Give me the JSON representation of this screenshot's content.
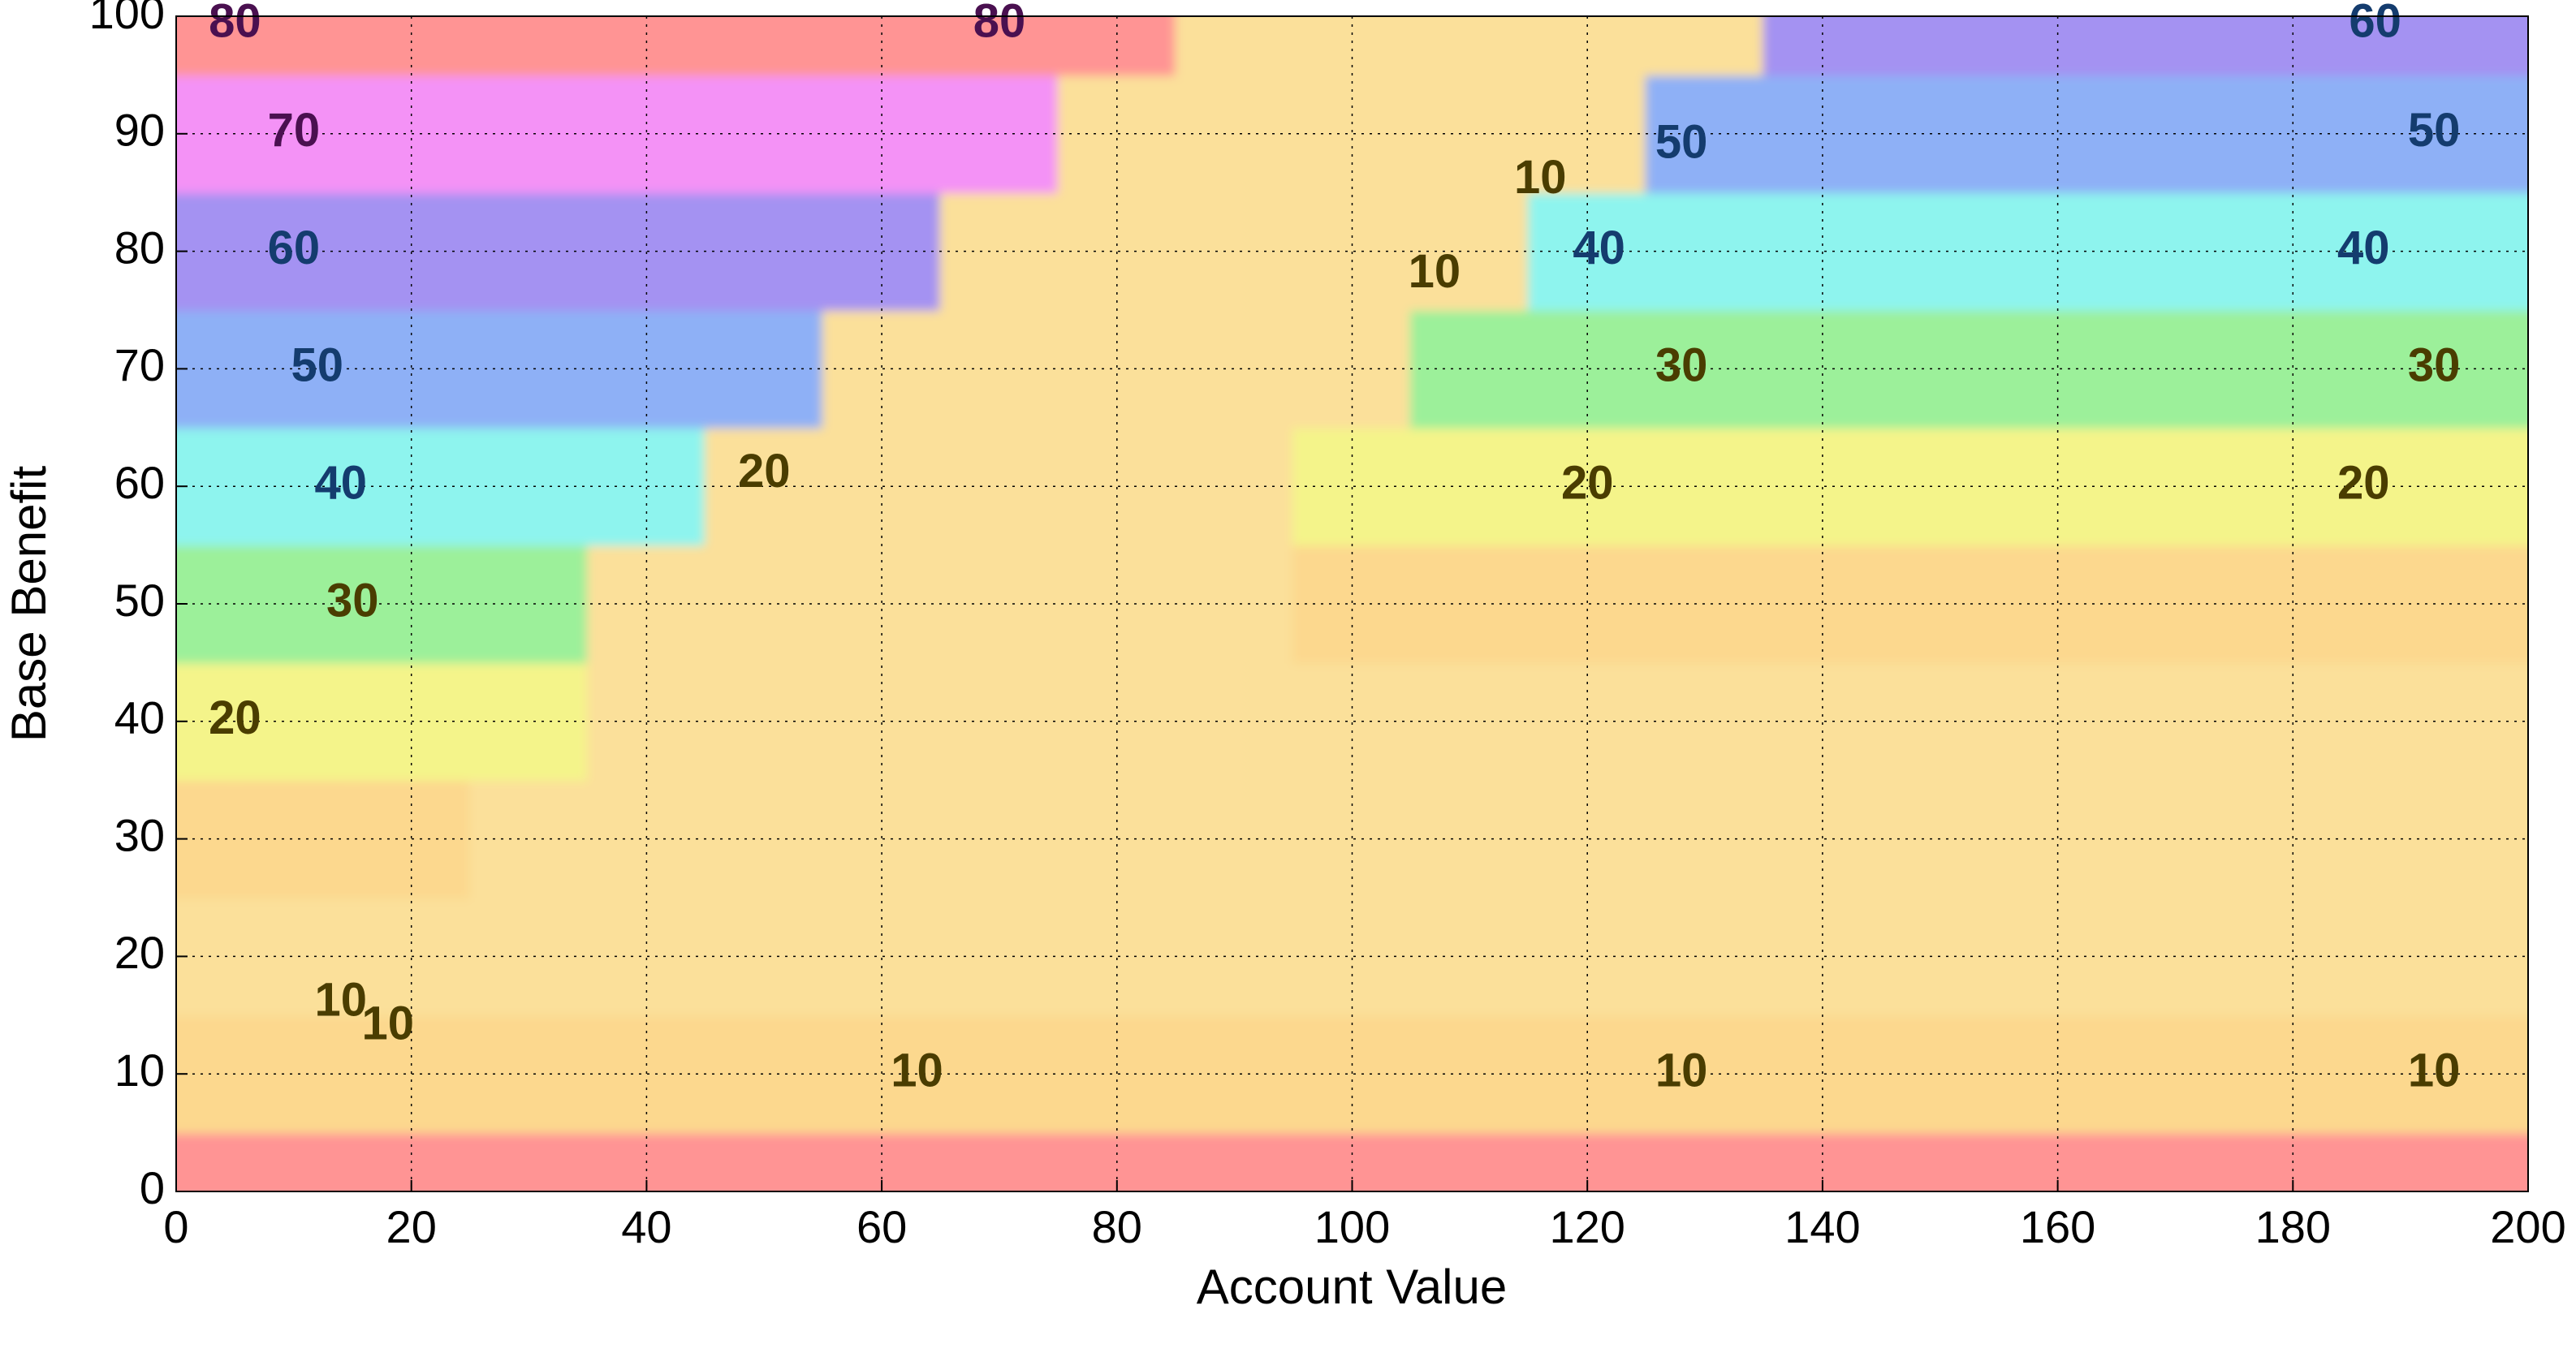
{
  "chart_data": {
    "type": "contour",
    "xlabel": "Account Value",
    "ylabel": "Base Benefit",
    "xlim": [
      0,
      200
    ],
    "ylim": [
      0,
      100
    ],
    "xticks": [
      0,
      20,
      40,
      60,
      80,
      100,
      120,
      140,
      160,
      180,
      200
    ],
    "yticks": [
      0,
      10,
      20,
      30,
      40,
      50,
      60,
      70,
      80,
      90,
      100
    ],
    "grid": true,
    "x": [
      0,
      10,
      20,
      30,
      40,
      50,
      60,
      70,
      80,
      90,
      100,
      110,
      120,
      130,
      140,
      150,
      160,
      170,
      180,
      190,
      200
    ],
    "y": [
      0,
      10,
      20,
      30,
      40,
      50,
      60,
      70,
      80,
      90,
      100
    ],
    "z": [
      [
        0,
        0,
        0,
        0,
        0,
        0,
        0,
        0,
        0,
        0,
        0,
        0,
        0,
        0,
        0,
        0,
        0,
        0,
        0,
        0,
        0
      ],
      [
        10,
        10,
        10,
        10,
        10,
        10,
        10,
        10,
        10,
        10,
        10,
        10,
        10,
        10,
        10,
        10,
        10,
        10,
        10,
        10,
        10
      ],
      [
        8,
        8,
        8,
        8,
        8,
        8,
        8,
        8,
        8,
        8,
        8,
        8,
        8,
        8,
        8,
        8,
        8,
        8,
        8,
        8,
        8
      ],
      [
        10,
        10,
        10,
        8,
        8,
        8,
        8,
        8,
        8,
        8,
        8,
        8,
        8,
        8,
        8,
        8,
        8,
        8,
        8,
        8,
        8
      ],
      [
        20,
        20,
        20,
        20,
        8,
        8,
        8,
        8,
        8,
        8,
        8,
        8,
        8,
        8,
        8,
        8,
        8,
        8,
        8,
        8,
        8
      ],
      [
        30,
        30,
        30,
        30,
        8,
        8,
        8,
        8,
        8,
        8,
        10,
        10,
        10,
        10,
        10,
        10,
        10,
        10,
        10,
        10,
        10
      ],
      [
        40,
        40,
        40,
        40,
        40,
        8,
        8,
        8,
        8,
        8,
        20,
        20,
        20,
        20,
        20,
        20,
        20,
        20,
        20,
        20,
        20
      ],
      [
        50,
        50,
        50,
        50,
        50,
        50,
        8,
        8,
        8,
        8,
        8,
        30,
        30,
        30,
        30,
        30,
        30,
        30,
        30,
        30,
        30
      ],
      [
        60,
        60,
        60,
        60,
        60,
        60,
        60,
        8,
        8,
        8,
        8,
        8,
        40,
        40,
        40,
        40,
        40,
        40,
        40,
        40,
        40
      ],
      [
        70,
        70,
        70,
        70,
        70,
        70,
        70,
        70,
        8,
        8,
        8,
        8,
        8,
        50,
        50,
        50,
        50,
        50,
        50,
        50,
        50
      ],
      [
        80,
        80,
        80,
        80,
        80,
        80,
        80,
        80,
        80,
        8,
        8,
        8,
        8,
        8,
        60,
        60,
        60,
        60,
        60,
        60,
        60
      ]
    ],
    "colormap": [
      {
        "value": 0,
        "color": "#ff9494"
      },
      {
        "value": 8,
        "color": "#fbe09a"
      },
      {
        "value": 10,
        "color": "#fcd88e"
      },
      {
        "value": 20,
        "color": "#f4f48a"
      },
      {
        "value": 30,
        "color": "#9cf09a"
      },
      {
        "value": 40,
        "color": "#8ef4ee"
      },
      {
        "value": 50,
        "color": "#8eb0f6"
      },
      {
        "value": 60,
        "color": "#a492f2"
      },
      {
        "value": 70,
        "color": "#f492f6"
      },
      {
        "value": 80,
        "color": "#ff9494"
      }
    ],
    "contour_labels": [
      {
        "x": 5,
        "y": 100,
        "level": 80
      },
      {
        "x": 70,
        "y": 100,
        "level": 80
      },
      {
        "x": 187,
        "y": 100,
        "level": 60
      },
      {
        "x": 10,
        "y": 90,
        "level": 70
      },
      {
        "x": 192,
        "y": 90,
        "level": 50
      },
      {
        "x": 128,
        "y": 89,
        "level": 50
      },
      {
        "x": 10,
        "y": 80,
        "level": 60
      },
      {
        "x": 121,
        "y": 80,
        "level": 40
      },
      {
        "x": 186,
        "y": 80,
        "level": 40
      },
      {
        "x": 12,
        "y": 70,
        "level": 50
      },
      {
        "x": 128,
        "y": 70,
        "level": 30
      },
      {
        "x": 192,
        "y": 70,
        "level": 30
      },
      {
        "x": 14,
        "y": 60,
        "level": 40
      },
      {
        "x": 50,
        "y": 61,
        "level": 20
      },
      {
        "x": 120,
        "y": 60,
        "level": 20
      },
      {
        "x": 186,
        "y": 60,
        "level": 20
      },
      {
        "x": 15,
        "y": 50,
        "level": 30
      },
      {
        "x": 5,
        "y": 40,
        "level": 20
      },
      {
        "x": 107,
        "y": 78,
        "level": 10
      },
      {
        "x": 116,
        "y": 86,
        "level": 10
      },
      {
        "x": 14,
        "y": 16,
        "level": 10
      },
      {
        "x": 18,
        "y": 14,
        "level": 10
      },
      {
        "x": 63,
        "y": 10,
        "level": 10
      },
      {
        "x": 128,
        "y": 10,
        "level": 10
      },
      {
        "x": 192,
        "y": 10,
        "level": 10
      }
    ]
  }
}
